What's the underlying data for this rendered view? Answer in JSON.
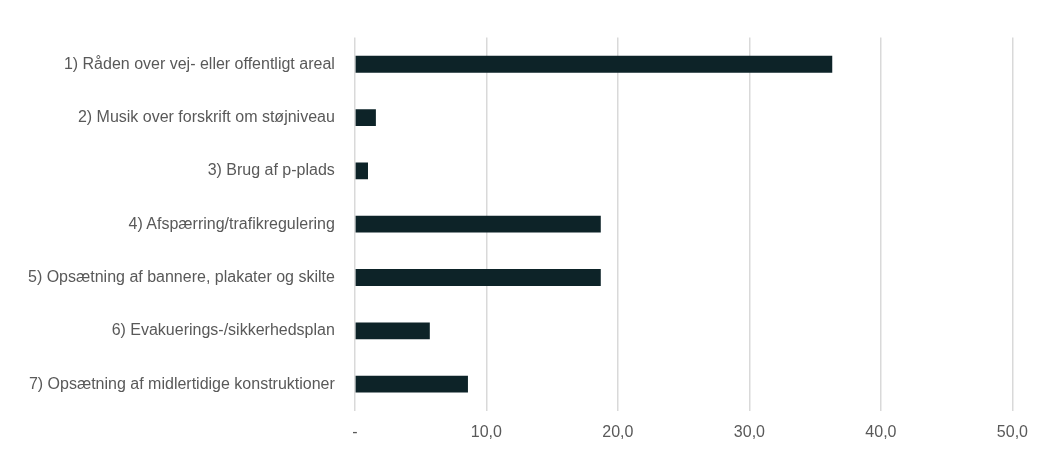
{
  "chart_data": {
    "type": "bar",
    "orientation": "horizontal",
    "categories": [
      "1) Råden over vej- eller offentligt areal",
      "2) Musik over forskrift om støjniveau",
      "3) Brug af p-plads",
      "4) Afspærring/trafikregulering",
      "5) Opsætning af bannere, plakater og skilte",
      "6) Evakuerings-/sikkerhedsplan",
      "7) Opsætning af midlertidige konstruktioner"
    ],
    "values": [
      36.3,
      1.6,
      1.0,
      18.7,
      18.7,
      5.7,
      8.6
    ],
    "color": "#0d2328",
    "xlim": [
      0,
      50
    ],
    "xticks": [
      {
        "value": 0,
        "label": "-"
      },
      {
        "value": 10,
        "label": "10,0"
      },
      {
        "value": 20,
        "label": "20,0"
      },
      {
        "value": 30,
        "label": "30,0"
      },
      {
        "value": 40,
        "label": "40,0"
      },
      {
        "value": 50,
        "label": "50,0"
      }
    ],
    "grid": "x",
    "legend": false
  }
}
